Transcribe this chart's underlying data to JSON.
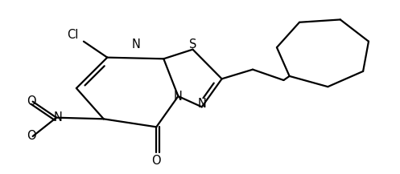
{
  "background_color": "#ffffff",
  "line_color": "#000000",
  "line_width": 1.6,
  "font_size": 10.5,
  "figsize": [
    4.97,
    2.17
  ],
  "dpi": 100,
  "xlim": [
    0,
    4.97
  ],
  "ylim": [
    0,
    2.17
  ]
}
